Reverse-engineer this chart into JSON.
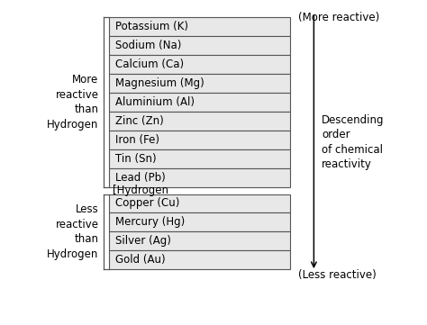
{
  "more_reactive_elements": [
    "Potassium (K)",
    "Sodium (Na)",
    "Calcium (Ca)",
    "Magnesium (Mg)",
    "Aluminium (Al)",
    "Zinc (Zn)",
    "Iron (Fe)",
    "Tin (Sn)",
    "Lead (Pb)"
  ],
  "hydrogen_label": "[Hydrogen",
  "less_reactive_elements": [
    "Copper (Cu)",
    "Mercury (Hg)",
    "Silver (Ag)",
    "Gold (Au)"
  ],
  "more_reactive_group_label": "More\nreactive\nthan\nHydrogen",
  "less_reactive_group_label": "Less\nreactive\nthan\nHydrogen",
  "more_reactive_top_label": "(More reactive)",
  "less_reactive_bottom_label": "(Less reactive)",
  "right_label": "Descending\norder\nof chemical\nreactivity",
  "bg_color": "#ffffff",
  "box_bg": "#e8e8e8",
  "box_edge": "#555555",
  "text_color": "#000000",
  "arrow_color": "#000000",
  "font_size": 8.5,
  "label_font_size": 8.5,
  "group_label_font_size": 8.5
}
